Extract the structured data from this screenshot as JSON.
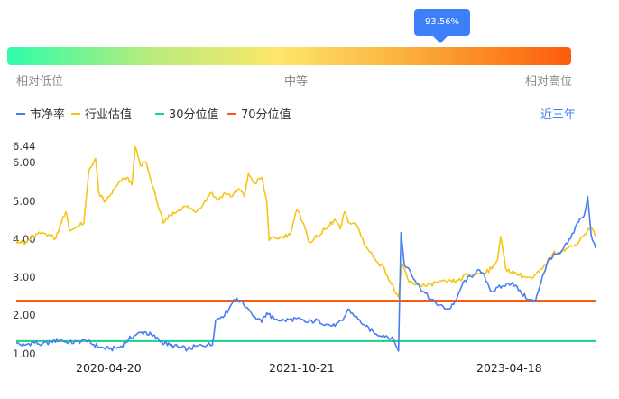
{
  "indicator": {
    "percentile_label": "93.56%",
    "percentile_value": 0.9356,
    "scale_low": "相对低位",
    "scale_mid": "中等",
    "scale_high": "相对高位"
  },
  "period_selector": "近三年",
  "colors": {
    "accent": "#3d7ff6",
    "pb_line": "#4a7ef0",
    "industry_line": "#f5c518",
    "p30_line": "#17d387",
    "p70_line": "#fb5a12"
  },
  "chart_data": {
    "type": "line",
    "title": "",
    "xlabel": "",
    "ylabel": "",
    "ylim": [
      1.0,
      6.44
    ],
    "y_ticks": [
      "1.00",
      "2.00",
      "3.00",
      "4.00",
      "5.00",
      "6.00",
      "6.44"
    ],
    "x_ticks": [
      "2020-04-20",
      "2021-10-21",
      "2023-04-18"
    ],
    "x_range": [
      "2019-07-22",
      "2024-03-14"
    ],
    "legend_position": "top-left",
    "grid": false,
    "series": [
      {
        "name": "市净率",
        "color": "#4a7ef0",
        "points": [
          [
            "2019-07-22",
            1.25
          ],
          [
            "2019-08-15",
            1.2
          ],
          [
            "2019-09-10",
            1.28
          ],
          [
            "2019-10-05",
            1.22
          ],
          [
            "2019-11-01",
            1.3
          ],
          [
            "2019-12-01",
            1.35
          ],
          [
            "2019-12-20",
            1.25
          ],
          [
            "2020-01-15",
            1.3
          ],
          [
            "2020-02-10",
            1.32
          ],
          [
            "2020-03-05",
            1.22
          ],
          [
            "2020-03-25",
            1.15
          ],
          [
            "2020-04-20",
            1.1
          ],
          [
            "2020-05-20",
            1.15
          ],
          [
            "2020-06-15",
            1.35
          ],
          [
            "2020-07-10",
            1.5
          ],
          [
            "2020-08-01",
            1.55
          ],
          [
            "2020-08-25",
            1.45
          ],
          [
            "2020-09-20",
            1.3
          ],
          [
            "2020-10-15",
            1.2
          ],
          [
            "2020-11-10",
            1.15
          ],
          [
            "2020-12-05",
            1.1
          ],
          [
            "2021-01-01",
            1.18
          ],
          [
            "2021-02-01",
            1.22
          ],
          [
            "2021-02-15",
            1.2
          ],
          [
            "2021-02-25",
            1.85
          ],
          [
            "2021-03-15",
            1.95
          ],
          [
            "2021-04-05",
            2.15
          ],
          [
            "2021-04-20",
            2.4
          ],
          [
            "2021-05-10",
            2.35
          ],
          [
            "2021-06-01",
            2.15
          ],
          [
            "2021-06-20",
            1.95
          ],
          [
            "2021-07-10",
            1.8
          ],
          [
            "2021-07-25",
            2.05
          ],
          [
            "2021-08-15",
            1.9
          ],
          [
            "2021-09-15",
            1.85
          ],
          [
            "2021-10-21",
            1.9
          ],
          [
            "2021-11-20",
            1.8
          ],
          [
            "2021-12-20",
            1.85
          ],
          [
            "2022-01-15",
            1.75
          ],
          [
            "2022-02-10",
            1.7
          ],
          [
            "2022-03-05",
            1.85
          ],
          [
            "2022-03-20",
            2.15
          ],
          [
            "2022-04-10",
            1.95
          ],
          [
            "2022-05-10",
            1.7
          ],
          [
            "2022-06-10",
            1.5
          ],
          [
            "2022-07-10",
            1.45
          ],
          [
            "2022-08-01",
            1.35
          ],
          [
            "2022-08-15",
            1.05
          ],
          [
            "2022-08-22",
            4.15
          ],
          [
            "2022-09-01",
            3.3
          ],
          [
            "2022-09-15",
            3.2
          ],
          [
            "2022-10-10",
            2.8
          ],
          [
            "2022-11-10",
            2.45
          ],
          [
            "2022-12-10",
            2.25
          ],
          [
            "2023-01-10",
            2.15
          ],
          [
            "2023-02-01",
            2.4
          ],
          [
            "2023-02-20",
            2.85
          ],
          [
            "2023-03-15",
            3.0
          ],
          [
            "2023-04-01",
            3.15
          ],
          [
            "2023-04-18",
            3.1
          ],
          [
            "2023-05-15",
            2.6
          ],
          [
            "2023-06-15",
            2.75
          ],
          [
            "2023-07-15",
            2.85
          ],
          [
            "2023-08-10",
            2.55
          ],
          [
            "2023-09-01",
            2.4
          ],
          [
            "2023-09-20",
            2.35
          ],
          [
            "2023-10-10",
            3.0
          ],
          [
            "2023-11-01",
            3.5
          ],
          [
            "2023-12-01",
            3.6
          ],
          [
            "2024-01-01",
            4.0
          ],
          [
            "2024-01-20",
            4.4
          ],
          [
            "2024-02-10",
            4.6
          ],
          [
            "2024-02-20",
            5.1
          ],
          [
            "2024-03-01",
            4.1
          ],
          [
            "2024-03-14",
            3.75
          ]
        ]
      },
      {
        "name": "行业估值",
        "color": "#f5c518",
        "points": [
          [
            "2019-07-22",
            3.95
          ],
          [
            "2019-08-15",
            3.85
          ],
          [
            "2019-09-10",
            4.05
          ],
          [
            "2019-10-05",
            4.15
          ],
          [
            "2019-10-25",
            4.1
          ],
          [
            "2019-11-15",
            4.0
          ],
          [
            "2019-12-05",
            4.55
          ],
          [
            "2019-12-15",
            4.7
          ],
          [
            "2019-12-25",
            4.2
          ],
          [
            "2020-01-15",
            4.3
          ],
          [
            "2020-02-05",
            4.4
          ],
          [
            "2020-02-20",
            5.8
          ],
          [
            "2020-03-10",
            6.1
          ],
          [
            "2020-03-20",
            5.2
          ],
          [
            "2020-04-05",
            4.95
          ],
          [
            "2020-04-20",
            5.1
          ],
          [
            "2020-05-05",
            5.3
          ],
          [
            "2020-05-25",
            5.5
          ],
          [
            "2020-06-10",
            5.6
          ],
          [
            "2020-06-25",
            5.4
          ],
          [
            "2020-07-05",
            6.4
          ],
          [
            "2020-07-20",
            5.9
          ],
          [
            "2020-08-05",
            6.0
          ],
          [
            "2020-08-20",
            5.5
          ],
          [
            "2020-09-05",
            5.0
          ],
          [
            "2020-09-25",
            4.4
          ],
          [
            "2020-10-15",
            4.6
          ],
          [
            "2020-11-10",
            4.75
          ],
          [
            "2020-12-05",
            4.85
          ],
          [
            "2020-12-25",
            4.7
          ],
          [
            "2021-01-20",
            4.9
          ],
          [
            "2021-02-10",
            5.2
          ],
          [
            "2021-03-05",
            5.0
          ],
          [
            "2021-03-25",
            5.2
          ],
          [
            "2021-04-15",
            5.1
          ],
          [
            "2021-05-05",
            5.3
          ],
          [
            "2021-05-20",
            5.1
          ],
          [
            "2021-06-01",
            5.7
          ],
          [
            "2021-06-20",
            5.45
          ],
          [
            "2021-07-10",
            5.6
          ],
          [
            "2021-07-25",
            4.95
          ],
          [
            "2021-08-01",
            3.95
          ],
          [
            "2021-08-20",
            4.0
          ],
          [
            "2021-09-10",
            4.05
          ],
          [
            "2021-10-01",
            4.1
          ],
          [
            "2021-10-21",
            4.75
          ],
          [
            "2021-11-10",
            4.4
          ],
          [
            "2021-11-25",
            3.9
          ],
          [
            "2021-12-20",
            4.05
          ],
          [
            "2022-01-20",
            4.3
          ],
          [
            "2022-02-10",
            4.5
          ],
          [
            "2022-02-25",
            4.25
          ],
          [
            "2022-03-10",
            4.7
          ],
          [
            "2022-03-25",
            4.4
          ],
          [
            "2022-04-15",
            4.35
          ],
          [
            "2022-05-10",
            3.8
          ],
          [
            "2022-06-05",
            3.5
          ],
          [
            "2022-07-05",
            3.2
          ],
          [
            "2022-07-25",
            2.8
          ],
          [
            "2022-08-15",
            2.45
          ],
          [
            "2022-08-25",
            3.35
          ],
          [
            "2022-09-15",
            2.85
          ],
          [
            "2022-10-10",
            2.8
          ],
          [
            "2022-11-05",
            2.75
          ],
          [
            "2022-12-05",
            2.85
          ],
          [
            "2023-01-05",
            2.85
          ],
          [
            "2023-02-05",
            2.9
          ],
          [
            "2023-03-05",
            3.05
          ],
          [
            "2023-04-18",
            3.1
          ],
          [
            "2023-05-15",
            3.2
          ],
          [
            "2023-06-01",
            3.45
          ],
          [
            "2023-06-10",
            4.05
          ],
          [
            "2023-06-25",
            3.2
          ],
          [
            "2023-07-20",
            3.1
          ],
          [
            "2023-08-15",
            3.0
          ],
          [
            "2023-09-10",
            2.95
          ],
          [
            "2023-10-10",
            3.2
          ],
          [
            "2023-11-10",
            3.6
          ],
          [
            "2023-12-10",
            3.7
          ],
          [
            "2024-01-10",
            3.8
          ],
          [
            "2024-02-10",
            4.1
          ],
          [
            "2024-03-01",
            4.3
          ],
          [
            "2024-03-14",
            4.05
          ]
        ]
      },
      {
        "name": "30分位值",
        "color": "#17d387",
        "points": [
          [
            "2019-07-22",
            1.31
          ],
          [
            "2024-03-14",
            1.31
          ]
        ]
      },
      {
        "name": "70分位值",
        "color": "#fb5a12",
        "points": [
          [
            "2019-07-22",
            2.37
          ],
          [
            "2024-03-14",
            2.37
          ]
        ]
      }
    ]
  }
}
